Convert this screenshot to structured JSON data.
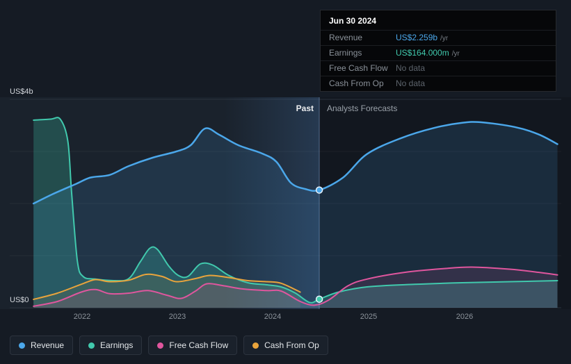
{
  "tooltip": {
    "date": "Jun 30 2024",
    "rows": [
      {
        "label": "Revenue",
        "value": "US$2.259b",
        "unit": "/yr",
        "color": "#4ba7ea"
      },
      {
        "label": "Earnings",
        "value": "US$164.000m",
        "unit": "/yr",
        "color": "#41c9ad"
      },
      {
        "label": "Free Cash Flow",
        "value": "No data",
        "unit": "",
        "color": "#5d646c"
      },
      {
        "label": "Cash From Op",
        "value": "No data",
        "unit": "",
        "color": "#5d646c"
      }
    ]
  },
  "axis": {
    "y_top": "US$4b",
    "y_zero": "US$0",
    "x_ticks": [
      "2022",
      "2023",
      "2024",
      "2025",
      "2026"
    ]
  },
  "regions": {
    "past": "Past",
    "forecast": "Analysts Forecasts"
  },
  "legend": [
    {
      "label": "Revenue",
      "color": "#4ba7ea"
    },
    {
      "label": "Earnings",
      "color": "#41c9ad"
    },
    {
      "label": "Free Cash Flow",
      "color": "#e0569e"
    },
    {
      "label": "Cash From Op",
      "color": "#e9a43c"
    }
  ],
  "chart_data": {
    "type": "line",
    "ylabel": "US$ billions",
    "ylim": [
      0,
      4
    ],
    "xlim": [
      2021.25,
      2027.04
    ],
    "y_gridlines": [
      1,
      2,
      3
    ],
    "divider_x": 2024.5,
    "divider_date": "Jun 30 2024",
    "highlight_band": [
      2023.5,
      2024.5
    ],
    "past_label": "Past",
    "forecast_label": "Analysts Forecasts",
    "series": [
      {
        "name": "Earnings",
        "color": "#41c9ad",
        "fill": "rgba(62,190,165,0.28)",
        "width": 2,
        "points": [
          [
            2021.5,
            3.6
          ],
          [
            2021.68,
            3.62
          ],
          [
            2021.78,
            3.62
          ],
          [
            2021.86,
            3.2
          ],
          [
            2021.9,
            2.2
          ],
          [
            2021.96,
            0.9
          ],
          [
            2022.02,
            0.6
          ],
          [
            2022.15,
            0.55
          ],
          [
            2022.35,
            0.52
          ],
          [
            2022.5,
            0.56
          ],
          [
            2022.62,
            0.88
          ],
          [
            2022.72,
            1.14
          ],
          [
            2022.8,
            1.12
          ],
          [
            2022.92,
            0.8
          ],
          [
            2023.02,
            0.62
          ],
          [
            2023.12,
            0.6
          ],
          [
            2023.25,
            0.84
          ],
          [
            2023.38,
            0.82
          ],
          [
            2023.55,
            0.62
          ],
          [
            2023.75,
            0.48
          ],
          [
            2023.95,
            0.44
          ],
          [
            2024.1,
            0.4
          ],
          [
            2024.25,
            0.28
          ],
          [
            2024.4,
            0.1
          ],
          [
            2024.5,
            0.164
          ],
          [
            2024.7,
            0.3
          ],
          [
            2025.0,
            0.4
          ],
          [
            2025.5,
            0.45
          ],
          [
            2026.0,
            0.48
          ],
          [
            2026.5,
            0.5
          ],
          [
            2027.0,
            0.52
          ]
        ]
      },
      {
        "name": "Revenue",
        "color": "#4ba7ea",
        "fill": "rgba(75,167,234,0.15)",
        "width": 2.5,
        "points": [
          [
            2021.5,
            2.0
          ],
          [
            2021.7,
            2.18
          ],
          [
            2021.95,
            2.38
          ],
          [
            2022.1,
            2.5
          ],
          [
            2022.3,
            2.55
          ],
          [
            2022.5,
            2.72
          ],
          [
            2022.75,
            2.88
          ],
          [
            2023.0,
            3.0
          ],
          [
            2023.15,
            3.12
          ],
          [
            2023.3,
            3.44
          ],
          [
            2023.45,
            3.32
          ],
          [
            2023.65,
            3.12
          ],
          [
            2023.9,
            2.96
          ],
          [
            2024.05,
            2.8
          ],
          [
            2024.2,
            2.4
          ],
          [
            2024.35,
            2.28
          ],
          [
            2024.5,
            2.259
          ],
          [
            2024.75,
            2.5
          ],
          [
            2025.0,
            2.95
          ],
          [
            2025.35,
            3.25
          ],
          [
            2025.7,
            3.45
          ],
          [
            2026.0,
            3.55
          ],
          [
            2026.2,
            3.56
          ],
          [
            2026.55,
            3.47
          ],
          [
            2026.8,
            3.33
          ],
          [
            2027.0,
            3.14
          ]
        ]
      },
      {
        "name": "Cash From Op",
        "color": "#e9a43c",
        "fill": "rgba(233,164,60,0.10)",
        "width": 2,
        "points": [
          [
            2021.5,
            0.16
          ],
          [
            2021.75,
            0.28
          ],
          [
            2022.0,
            0.45
          ],
          [
            2022.15,
            0.54
          ],
          [
            2022.3,
            0.5
          ],
          [
            2022.5,
            0.53
          ],
          [
            2022.68,
            0.64
          ],
          [
            2022.85,
            0.6
          ],
          [
            2023.0,
            0.5
          ],
          [
            2023.2,
            0.56
          ],
          [
            2023.35,
            0.62
          ],
          [
            2023.55,
            0.58
          ],
          [
            2023.75,
            0.52
          ],
          [
            2023.95,
            0.5
          ],
          [
            2024.1,
            0.47
          ],
          [
            2024.3,
            0.3
          ]
        ]
      },
      {
        "name": "Free Cash Flow",
        "color": "#e0569e",
        "fill": "rgba(224,86,158,0.13)",
        "width": 2,
        "points": [
          [
            2021.5,
            0.03
          ],
          [
            2021.75,
            0.12
          ],
          [
            2022.0,
            0.3
          ],
          [
            2022.15,
            0.35
          ],
          [
            2022.3,
            0.27
          ],
          [
            2022.5,
            0.28
          ],
          [
            2022.7,
            0.33
          ],
          [
            2022.9,
            0.24
          ],
          [
            2023.05,
            0.18
          ],
          [
            2023.2,
            0.32
          ],
          [
            2023.32,
            0.46
          ],
          [
            2023.5,
            0.42
          ],
          [
            2023.7,
            0.36
          ],
          [
            2023.95,
            0.33
          ],
          [
            2024.1,
            0.32
          ],
          [
            2024.3,
            0.12
          ],
          [
            2024.45,
            0.05
          ],
          [
            2024.6,
            0.15
          ],
          [
            2024.8,
            0.42
          ],
          [
            2025.0,
            0.55
          ],
          [
            2025.4,
            0.68
          ],
          [
            2025.8,
            0.75
          ],
          [
            2026.1,
            0.78
          ],
          [
            2026.5,
            0.74
          ],
          [
            2026.8,
            0.68
          ],
          [
            2027.0,
            0.63
          ]
        ]
      }
    ],
    "markers": [
      {
        "series": "Revenue",
        "x": 2024.5,
        "y": 2.259,
        "color": "#4ba7ea"
      },
      {
        "series": "Earnings",
        "x": 2024.5,
        "y": 0.164,
        "color": "#41c9ad"
      }
    ]
  }
}
